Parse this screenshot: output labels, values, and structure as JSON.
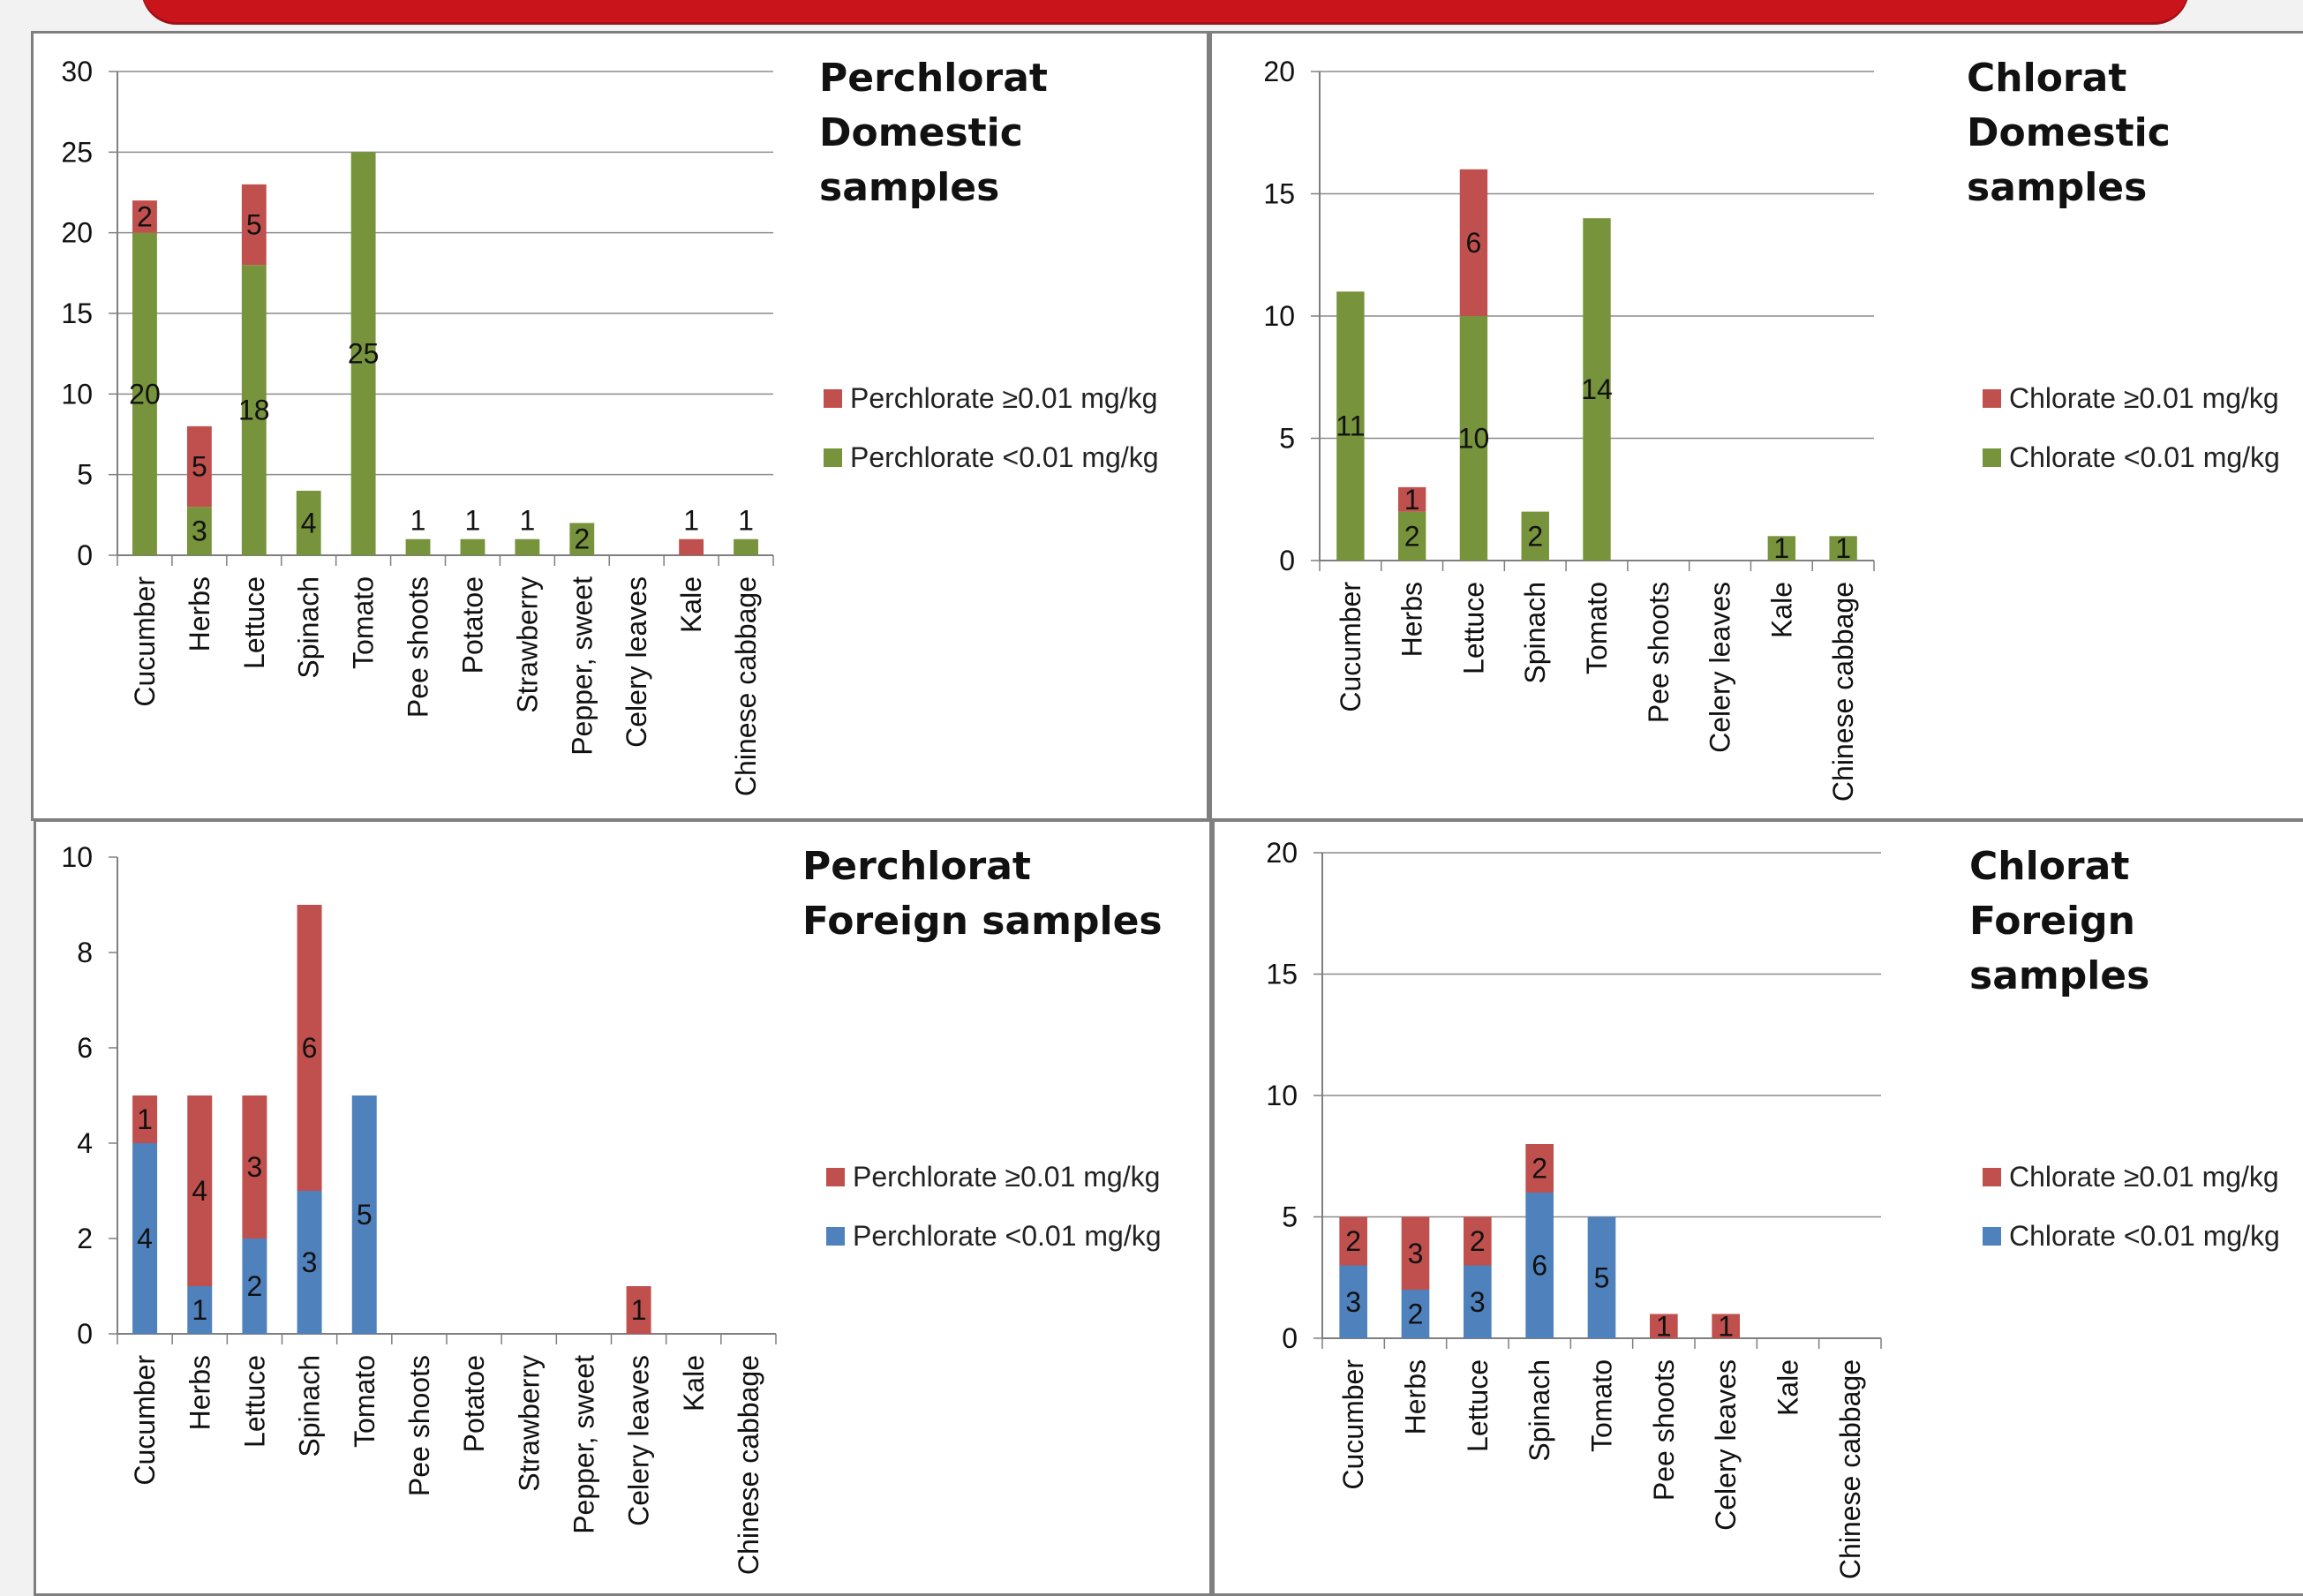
{
  "chart_data": [
    {
      "type": "bar",
      "stacked": true,
      "title": "Perchlorat\nDomestic samples",
      "categories": [
        "Cucumber",
        "Herbs",
        "Lettuce",
        "Spinach",
        "Tomato",
        "Pee shoots",
        "Potatoe",
        "Strawberry",
        "Pepper, sweet",
        "Celery leaves",
        "Kale",
        "Chinese cabbage"
      ],
      "ylim": [
        0,
        30
      ],
      "yticks": [
        0,
        5,
        10,
        15,
        20,
        25,
        30
      ],
      "grid": true,
      "legend_position": "right",
      "series": [
        {
          "name": "Perchlorate <0.01 mg/kg",
          "color": "#77933c",
          "values": [
            20,
            3,
            18,
            4,
            25,
            1,
            1,
            1,
            2,
            0,
            0,
            1
          ],
          "labels": [
            "20",
            "3",
            "18",
            "4",
            "25",
            "1",
            "1",
            "1",
            "2",
            "",
            "",
            "1"
          ]
        },
        {
          "name": "Perchlorate ≥0.01 mg/kg",
          "color": "#c0504d",
          "values": [
            2,
            5,
            5,
            0,
            0,
            0,
            0,
            0,
            0,
            0,
            1,
            0
          ],
          "labels": [
            "2",
            "5",
            "5",
            "",
            "",
            "",
            "",
            "",
            "",
            "",
            "1",
            ""
          ]
        }
      ]
    },
    {
      "type": "bar",
      "stacked": true,
      "title": "Chlorat\nDomestic\nsamples",
      "categories": [
        "Cucumber",
        "Herbs",
        "Lettuce",
        "Spinach",
        "Tomato",
        "Pee shoots",
        "Celery leaves",
        "Kale",
        "Chinese cabbage"
      ],
      "ylim": [
        0,
        20
      ],
      "yticks": [
        0,
        5,
        10,
        15,
        20
      ],
      "grid": true,
      "legend_position": "right",
      "series": [
        {
          "name": "Chlorate <0.01 mg/kg",
          "color": "#77933c",
          "values": [
            11,
            2,
            10,
            2,
            14,
            0,
            0,
            1,
            1
          ],
          "labels": [
            "11",
            "2",
            "10",
            "2",
            "14",
            "",
            "",
            "1",
            "1"
          ]
        },
        {
          "name": "Chlorate ≥0.01 mg/kg",
          "color": "#c0504d",
          "values": [
            0,
            1,
            6,
            0,
            0,
            0,
            0,
            0,
            0
          ],
          "labels": [
            "",
            "1",
            "6",
            "",
            "",
            "",
            "",
            "",
            ""
          ]
        }
      ]
    },
    {
      "type": "bar",
      "stacked": true,
      "title": "Perchlorat\nForeign samples",
      "categories": [
        "Cucumber",
        "Herbs",
        "Lettuce",
        "Spinach",
        "Tomato",
        "Pee shoots",
        "Potatoe",
        "Strawberry",
        "Pepper, sweet",
        "Celery leaves",
        "Kale",
        "Chinese cabbage"
      ],
      "ylim": [
        0,
        10
      ],
      "yticks": [
        0,
        2,
        4,
        6,
        8,
        10
      ],
      "grid": false,
      "legend_position": "right",
      "series": [
        {
          "name": "Perchlorate <0.01 mg/kg",
          "color": "#4f81bd",
          "values": [
            4,
            1,
            2,
            3,
            5,
            0,
            0,
            0,
            0,
            0,
            0,
            0
          ],
          "labels": [
            "4",
            "1",
            "2",
            "3",
            "5",
            "",
            "",
            "",
            "",
            "",
            "",
            ""
          ]
        },
        {
          "name": "Perchlorate ≥0.01 mg/kg",
          "color": "#c0504d",
          "values": [
            1,
            4,
            3,
            6,
            0,
            0,
            0,
            0,
            0,
            1,
            0,
            0
          ],
          "labels": [
            "1",
            "4",
            "3",
            "6",
            "",
            "",
            "",
            "",
            "",
            "1",
            "",
            ""
          ]
        }
      ]
    },
    {
      "type": "bar",
      "stacked": true,
      "title": "Chlorat\nForeign samples",
      "categories": [
        "Cucumber",
        "Herbs",
        "Lettuce",
        "Spinach",
        "Tomato",
        "Pee shoots",
        "Celery leaves",
        "Kale",
        "Chinese cabbage"
      ],
      "ylim": [
        0,
        20
      ],
      "yticks": [
        0,
        5,
        10,
        15,
        20
      ],
      "grid": true,
      "legend_position": "right",
      "series": [
        {
          "name": "Chlorate <0.01 mg/kg",
          "color": "#4f81bd",
          "values": [
            3,
            2,
            3,
            6,
            5,
            0,
            0,
            0,
            0
          ],
          "labels": [
            "3",
            "2",
            "3",
            "6",
            "5",
            "",
            "",
            "",
            ""
          ]
        },
        {
          "name": "Chlorate ≥0.01 mg/kg",
          "color": "#c0504d",
          "values": [
            2,
            3,
            2,
            2,
            0,
            1,
            1,
            0,
            0
          ],
          "labels": [
            "2",
            "3",
            "2",
            "2",
            "",
            "1",
            "1",
            "",
            ""
          ]
        }
      ]
    }
  ]
}
